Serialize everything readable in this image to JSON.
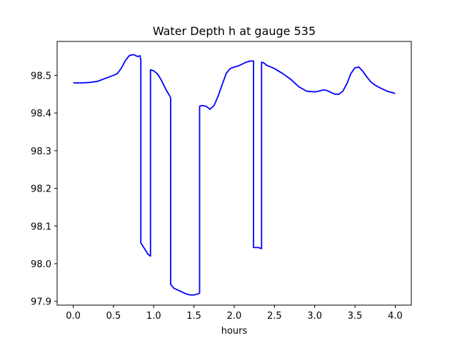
{
  "chart_data": {
    "type": "line",
    "title": "Water Depth h at gauge 535",
    "xlabel": "hours",
    "ylabel": "",
    "xlim": [
      -0.2,
      4.2
    ],
    "ylim": [
      97.89,
      98.59
    ],
    "xticks": [
      0.0,
      0.5,
      1.0,
      1.5,
      2.0,
      2.5,
      3.0,
      3.5,
      4.0
    ],
    "xtick_labels": [
      "0.0",
      "0.5",
      "1.0",
      "1.5",
      "2.0",
      "2.5",
      "3.0",
      "3.5",
      "4.0"
    ],
    "yticks": [
      97.9,
      98.0,
      98.1,
      98.2,
      98.3,
      98.4,
      98.5
    ],
    "ytick_labels": [
      "97.9",
      "98.0",
      "98.1",
      "98.2",
      "98.3",
      "98.4",
      "98.5"
    ],
    "grid": false,
    "series": [
      {
        "color": "#0000ff",
        "x": [
          0.0,
          0.1,
          0.2,
          0.3,
          0.4,
          0.5,
          0.55,
          0.6,
          0.65,
          0.7,
          0.75,
          0.8,
          0.83,
          0.84,
          0.84,
          0.87,
          0.9,
          0.93,
          0.96,
          0.96,
          1.0,
          1.05,
          1.1,
          1.15,
          1.2,
          1.21,
          1.21,
          1.25,
          1.3,
          1.35,
          1.4,
          1.45,
          1.5,
          1.55,
          1.57,
          1.57,
          1.6,
          1.65,
          1.7,
          1.75,
          1.8,
          1.85,
          1.9,
          1.95,
          2.0,
          2.05,
          2.1,
          2.15,
          2.2,
          2.24,
          2.24,
          2.27,
          2.3,
          2.34,
          2.34,
          2.37,
          2.4,
          2.5,
          2.6,
          2.7,
          2.8,
          2.9,
          3.0,
          3.05,
          3.1,
          3.15,
          3.2,
          3.25,
          3.3,
          3.35,
          3.4,
          3.45,
          3.5,
          3.55,
          3.6,
          3.65,
          3.7,
          3.75,
          3.8,
          3.9,
          4.0
        ],
        "y": [
          98.48,
          98.48,
          98.481,
          98.484,
          98.492,
          98.5,
          98.505,
          98.52,
          98.54,
          98.553,
          98.555,
          98.55,
          98.552,
          98.54,
          98.055,
          98.045,
          98.035,
          98.025,
          98.02,
          98.515,
          98.512,
          98.503,
          98.485,
          98.463,
          98.445,
          98.44,
          97.945,
          97.935,
          97.93,
          97.925,
          97.92,
          97.917,
          97.917,
          97.92,
          97.922,
          98.418,
          98.42,
          98.418,
          98.41,
          98.42,
          98.445,
          98.475,
          98.505,
          98.518,
          98.522,
          98.525,
          98.53,
          98.535,
          98.538,
          98.538,
          98.043,
          98.043,
          98.043,
          98.04,
          98.535,
          98.533,
          98.527,
          98.518,
          98.505,
          98.49,
          98.47,
          98.458,
          98.456,
          98.458,
          98.461,
          98.46,
          98.455,
          98.45,
          98.45,
          98.458,
          98.478,
          98.505,
          98.52,
          98.522,
          98.51,
          98.495,
          98.482,
          98.474,
          98.468,
          98.458,
          98.452
        ]
      }
    ]
  }
}
